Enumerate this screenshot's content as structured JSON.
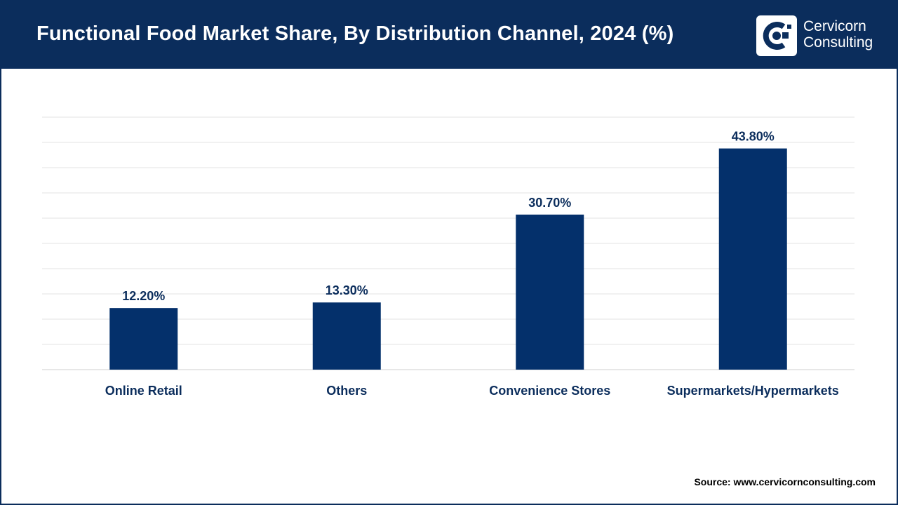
{
  "header": {
    "title": "Functional Food Market Share, By Distribution Channel, 2024 (%)",
    "brand_line1": "Cervicorn",
    "brand_line2": "Consulting"
  },
  "source": "Source: www.cervicornconsulting.com",
  "colors": {
    "primary": "#0b2d5c",
    "bar": "#04306b",
    "grid": "#e3e3e3"
  },
  "chart_data": {
    "type": "bar",
    "title": "Functional Food Market Share, By Distribution Channel, 2024 (%)",
    "categories": [
      "Online Retail",
      "Others",
      "Convenience Stores",
      "Supermarkets/Hypermarkets"
    ],
    "values": [
      12.2,
      13.3,
      30.7,
      43.8
    ],
    "value_labels": [
      "12.20%",
      "13.30%",
      "30.70%",
      "43.80%"
    ],
    "xlabel": "",
    "ylabel": "",
    "ylim": [
      0,
      50
    ],
    "grid": true,
    "legend": "none"
  }
}
